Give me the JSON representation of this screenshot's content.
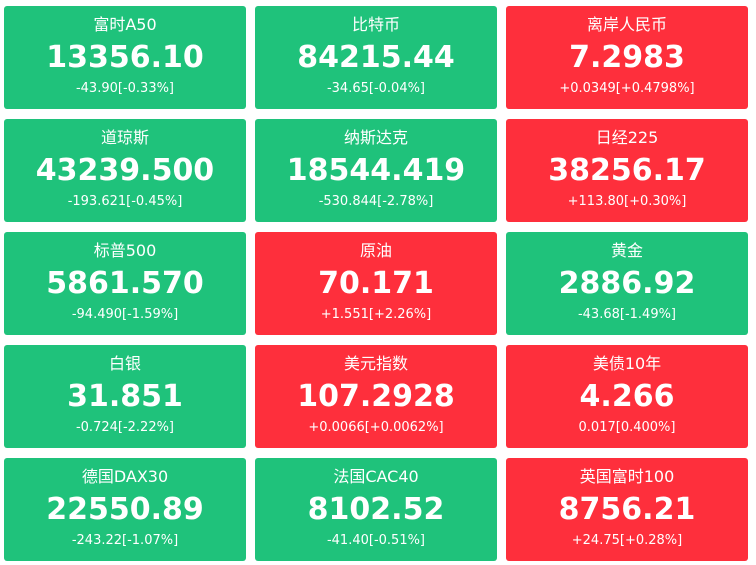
{
  "colors": {
    "down": "#1fc27b",
    "up": "#fe2f3c"
  },
  "tiles": [
    {
      "name": "富时A50",
      "price": "13356.10",
      "change": "-43.90[-0.33%]",
      "trend": "down"
    },
    {
      "name": "比特币",
      "price": "84215.44",
      "change": "-34.65[-0.04%]",
      "trend": "down"
    },
    {
      "name": "离岸人民币",
      "price": "7.2983",
      "change": "+0.0349[+0.4798%]",
      "trend": "up"
    },
    {
      "name": "道琼斯",
      "price": "43239.500",
      "change": "-193.621[-0.45%]",
      "trend": "down"
    },
    {
      "name": "纳斯达克",
      "price": "18544.419",
      "change": "-530.844[-2.78%]",
      "trend": "down"
    },
    {
      "name": "日经225",
      "price": "38256.17",
      "change": "+113.80[+0.30%]",
      "trend": "up"
    },
    {
      "name": "标普500",
      "price": "5861.570",
      "change": "-94.490[-1.59%]",
      "trend": "down"
    },
    {
      "name": "原油",
      "price": "70.171",
      "change": "+1.551[+2.26%]",
      "trend": "up"
    },
    {
      "name": "黄金",
      "price": "2886.92",
      "change": "-43.68[-1.49%]",
      "trend": "down"
    },
    {
      "name": "白银",
      "price": "31.851",
      "change": "-0.724[-2.22%]",
      "trend": "down"
    },
    {
      "name": "美元指数",
      "price": "107.2928",
      "change": "+0.0066[+0.0062%]",
      "trend": "up"
    },
    {
      "name": "美债10年",
      "price": "4.266",
      "change": "0.017[0.400%]",
      "trend": "up"
    },
    {
      "name": "德国DAX30",
      "price": "22550.89",
      "change": "-243.22[-1.07%]",
      "trend": "down"
    },
    {
      "name": "法国CAC40",
      "price": "8102.52",
      "change": "-41.40[-0.51%]",
      "trend": "down"
    },
    {
      "name": "英国富时100",
      "price": "8756.21",
      "change": "+24.75[+0.28%]",
      "trend": "up"
    }
  ]
}
